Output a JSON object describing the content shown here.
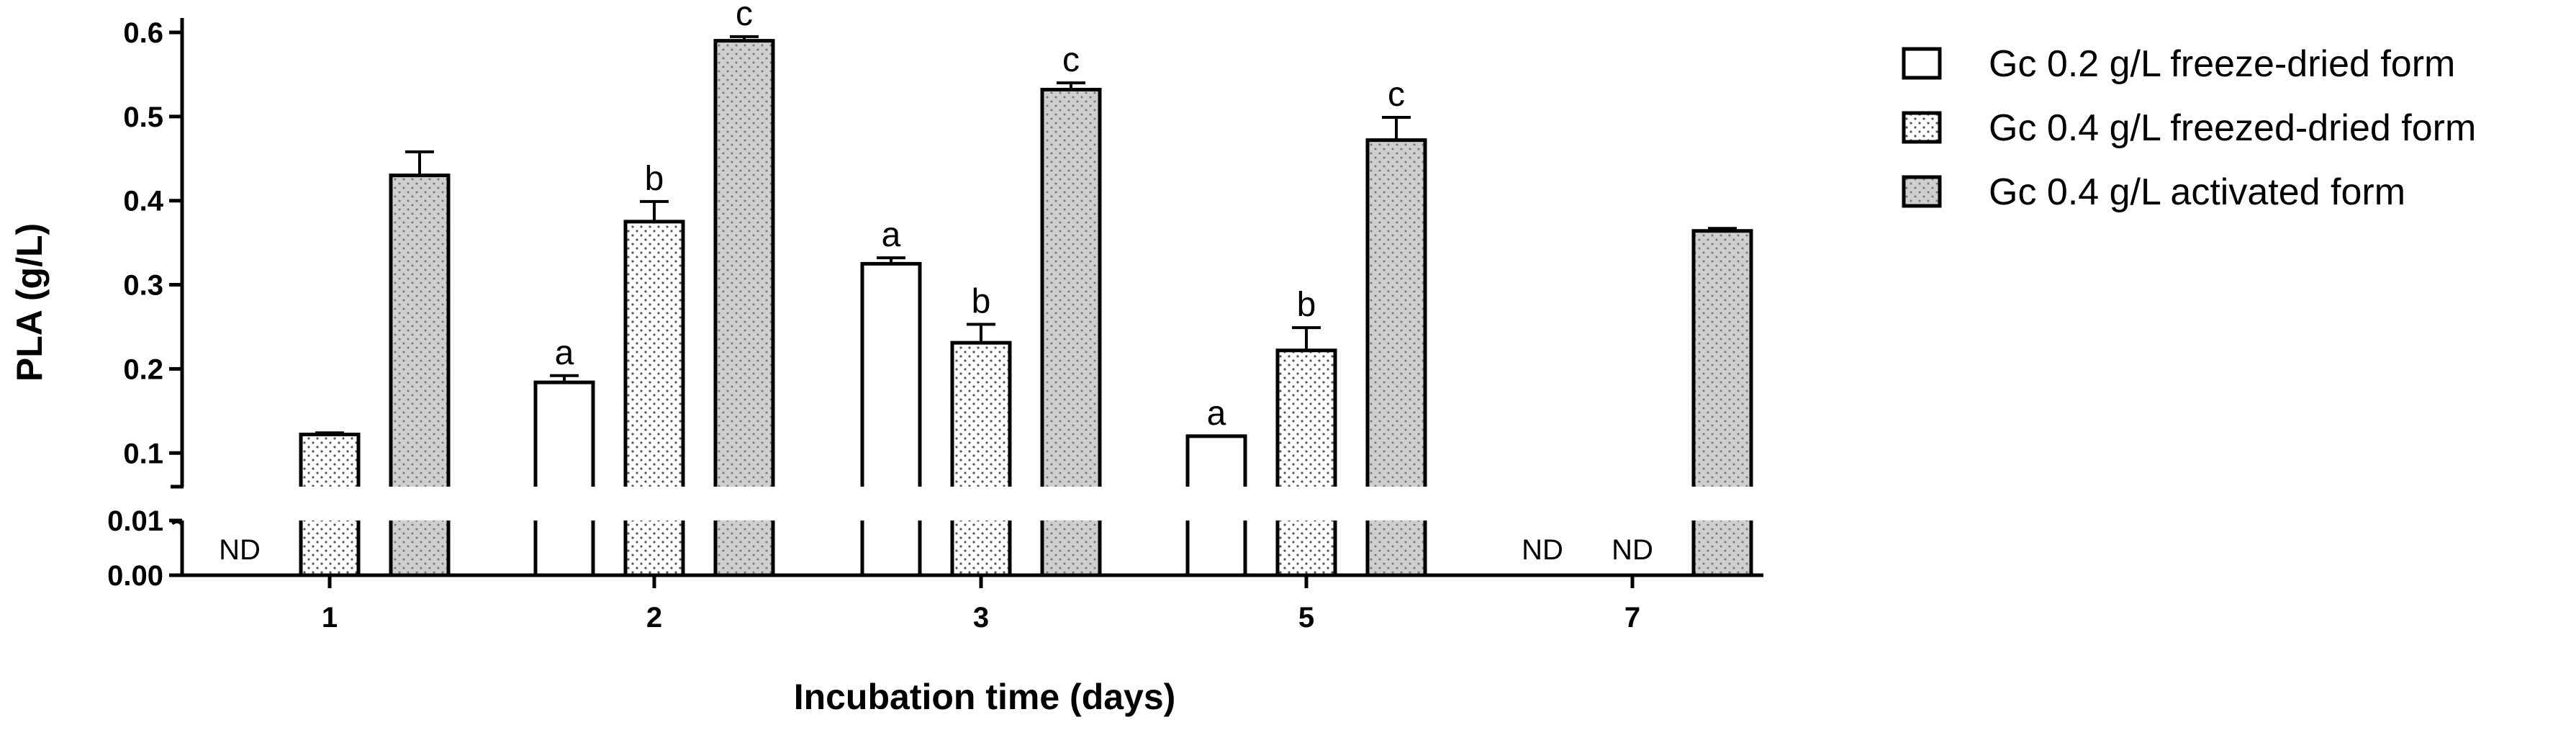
{
  "chart_data": {
    "type": "bar",
    "categories": [
      "1",
      "2",
      "3",
      "5",
      "7"
    ],
    "xlabel": "Incubation time (days)",
    "ylabel": "PLA (g/L)",
    "ylim_upper": [
      0.06,
      0.6
    ],
    "ylim_lower": [
      0.0,
      0.01
    ],
    "y_ticks_upper": [
      "0.1",
      "0.2",
      "0.3",
      "0.4",
      "0.5",
      "0.6"
    ],
    "y_ticks_lower": [
      "0.00",
      "0.01"
    ],
    "legend_position": "top-right",
    "series": [
      {
        "name": "Gc 0.2 g/L freeze-dried form",
        "pattern": "open",
        "values": [
          null,
          0.184,
          0.325,
          0.12,
          null
        ],
        "errors": [
          0,
          0.008,
          0.007,
          0,
          0
        ],
        "letters": [
          "",
          "a",
          "a",
          "a",
          ""
        ],
        "nd": [
          "ND",
          "",
          "",
          "",
          "ND"
        ]
      },
      {
        "name": "Gc 0.4 g/L freezed-dried form",
        "pattern": "dotted",
        "values": [
          0.122,
          0.375,
          0.231,
          0.222,
          null
        ],
        "errors": [
          0.002,
          0.024,
          0.022,
          0.027,
          0
        ],
        "letters": [
          "",
          "b",
          "b",
          "b",
          ""
        ],
        "nd": [
          "",
          "",
          "",
          "",
          "ND"
        ]
      },
      {
        "name": "Gc 0.4 g/L activated form",
        "pattern": "shaded",
        "values": [
          0.43,
          0.59,
          0.532,
          0.472,
          0.364
        ],
        "errors": [
          0.028,
          0.005,
          0.008,
          0.027,
          0.003
        ],
        "letters": [
          "",
          "c",
          "c",
          "c",
          ""
        ],
        "nd": [
          "",
          "",
          "",
          "",
          ""
        ]
      }
    ]
  }
}
